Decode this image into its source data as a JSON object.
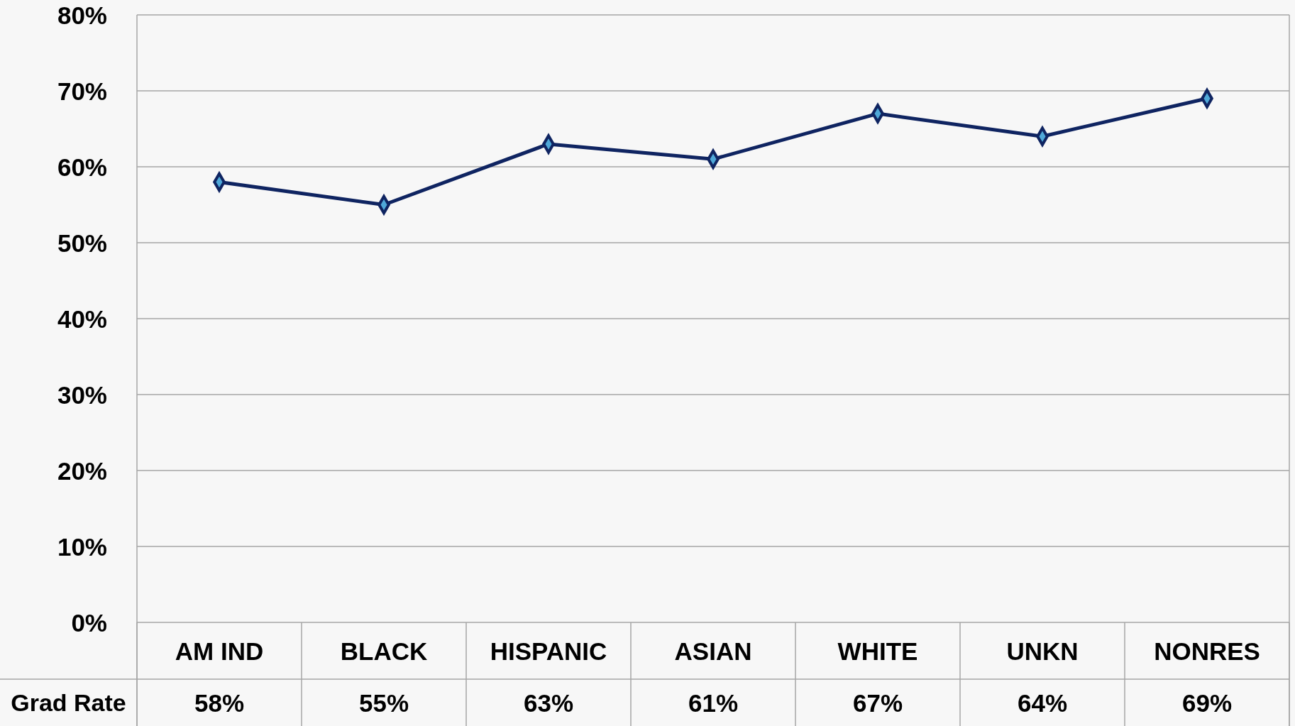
{
  "chart_data": {
    "type": "line",
    "categories": [
      "AM IND",
      "BLACK",
      "HISPANIC",
      "ASIAN",
      "WHITE",
      "UNKN",
      "NONRES"
    ],
    "series": [
      {
        "name": "Grad Rate",
        "color": "#0f2461",
        "values": [
          58,
          55,
          63,
          61,
          67,
          64,
          69
        ],
        "value_labels": [
          "58%",
          "55%",
          "63%",
          "61%",
          "67%",
          "64%",
          "69%"
        ]
      }
    ],
    "ylim": [
      0,
      80
    ],
    "yticks": [
      {
        "value": 0,
        "label": "0%"
      },
      {
        "value": 10,
        "label": "10%"
      },
      {
        "value": 20,
        "label": "20%"
      },
      {
        "value": 30,
        "label": "30%"
      },
      {
        "value": 40,
        "label": "40%"
      },
      {
        "value": 50,
        "label": "50%"
      },
      {
        "value": 60,
        "label": "60%"
      },
      {
        "value": 70,
        "label": "70%"
      },
      {
        "value": 80,
        "label": "80%"
      }
    ],
    "grid": "y",
    "marker": "diamond",
    "line_style": "solid"
  }
}
